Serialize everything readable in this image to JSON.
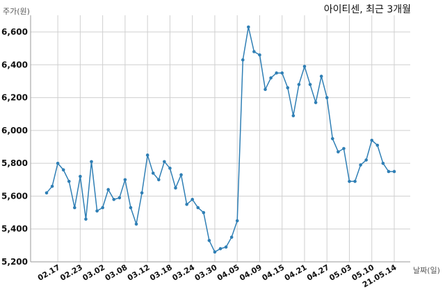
{
  "chart_data": {
    "type": "line",
    "title": "아이티센, 최근 3개월",
    "ylabel": "주가(원)",
    "xlabel": "날짜(일)",
    "ylim": [
      5200,
      6700
    ],
    "yticks": [
      5200,
      5400,
      5600,
      5800,
      6000,
      6200,
      6400,
      6600
    ],
    "ytick_labels": [
      "5,200",
      "5,400",
      "5,600",
      "5,800",
      "6,000",
      "6,200",
      "6,400",
      "6,600"
    ],
    "xtick_labels": [
      "02.17",
      "02.23",
      "03.02",
      "03.08",
      "03.12",
      "03.18",
      "03.24",
      "03.30",
      "04.05",
      "04.09",
      "04.15",
      "04.21",
      "04.27",
      "05.03",
      "05.10",
      "21.05.14"
    ],
    "xtick_positions": [
      2,
      6,
      10,
      14,
      18,
      22,
      26,
      30,
      34,
      38,
      42,
      46,
      50,
      54,
      58,
      62
    ],
    "grid": true,
    "series": [
      {
        "color": "#2f7fb5",
        "values": [
          5620,
          5660,
          5800,
          5760,
          5690,
          5530,
          5720,
          5460,
          5810,
          5510,
          5530,
          5640,
          5580,
          5590,
          5700,
          5530,
          5430,
          5620,
          5850,
          5740,
          5700,
          5810,
          5770,
          5650,
          5730,
          5550,
          5580,
          5530,
          5500,
          5330,
          5260,
          5280,
          5290,
          5350,
          5450,
          6430,
          6630,
          6480,
          6460,
          6250,
          6320,
          6350,
          6350,
          6260,
          6090,
          6280,
          6390,
          6280,
          6170,
          6330,
          6200,
          5950,
          5870,
          5890,
          5690,
          5690,
          5790,
          5820,
          5940,
          5910,
          5800,
          5750,
          5750
        ]
      }
    ]
  }
}
